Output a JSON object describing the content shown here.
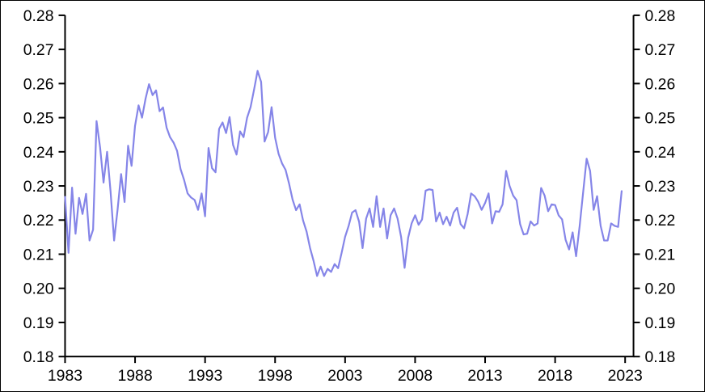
{
  "chart_data": {
    "type": "line",
    "title": "",
    "xlabel": "",
    "ylabel": "",
    "xlim": [
      1983,
      2023.6
    ],
    "ylim": [
      0.18,
      0.28
    ],
    "grid": false,
    "legend": "none",
    "x_tick_labels": [
      "1983",
      "1988",
      "1993",
      "1998",
      "2003",
      "2008",
      "2013",
      "2018",
      "2023"
    ],
    "x_ticks": [
      1983,
      1988,
      1993,
      1998,
      2003,
      2008,
      2013,
      2018,
      2023
    ],
    "y_ticks": [
      0.18,
      0.19,
      0.2,
      0.21,
      0.22,
      0.23,
      0.24,
      0.25,
      0.26,
      0.27,
      0.28
    ],
    "y_tick_labels": [
      "0.18",
      "0.19",
      "0.20",
      "0.21",
      "0.22",
      "0.23",
      "0.24",
      "0.25",
      "0.26",
      "0.27",
      "0.28"
    ],
    "y_axis_sides": [
      "left",
      "right"
    ],
    "line_color": "#8585e8",
    "axis_color": "#000000",
    "series": [
      {
        "name": "series-1",
        "x_start": 1983.0,
        "x_step": 0.25,
        "values": [
          0.2268,
          0.2104,
          0.2295,
          0.216,
          0.2265,
          0.2218,
          0.2277,
          0.214,
          0.2172,
          0.249,
          0.2413,
          0.231,
          0.24,
          0.2284,
          0.214,
          0.223,
          0.2335,
          0.2253,
          0.2418,
          0.2359,
          0.2476,
          0.2536,
          0.25,
          0.2556,
          0.2598,
          0.2566,
          0.258,
          0.2519,
          0.253,
          0.2471,
          0.2443,
          0.2427,
          0.2403,
          0.2349,
          0.2318,
          0.2278,
          0.2266,
          0.2259,
          0.223,
          0.2278,
          0.2211,
          0.2411,
          0.2352,
          0.234,
          0.2467,
          0.2486,
          0.2455,
          0.2502,
          0.242,
          0.2392,
          0.246,
          0.2443,
          0.25,
          0.2531,
          0.2583,
          0.2637,
          0.2605,
          0.243,
          0.2458,
          0.2531,
          0.2441,
          0.2394,
          0.2366,
          0.2347,
          0.2307,
          0.226,
          0.2229,
          0.2246,
          0.2199,
          0.2166,
          0.2118,
          0.208,
          0.2036,
          0.2064,
          0.2036,
          0.2057,
          0.2048,
          0.2071,
          0.2059,
          0.2104,
          0.2151,
          0.2182,
          0.2222,
          0.2229,
          0.2195,
          0.2118,
          0.2204,
          0.2234,
          0.218,
          0.227,
          0.218,
          0.2234,
          0.2146,
          0.2214,
          0.2234,
          0.2204,
          0.215,
          0.206,
          0.2148,
          0.219,
          0.2214,
          0.2186,
          0.2202,
          0.2286,
          0.229,
          0.2288,
          0.2196,
          0.2222,
          0.2188,
          0.221,
          0.2184,
          0.2222,
          0.2236,
          0.2188,
          0.2176,
          0.2218,
          0.2278,
          0.227,
          0.2254,
          0.223,
          0.225,
          0.2278,
          0.219,
          0.2226,
          0.2224,
          0.2246,
          0.2344,
          0.23,
          0.2272,
          0.2258,
          0.2188,
          0.2158,
          0.216,
          0.2196,
          0.2184,
          0.219,
          0.2294,
          0.2272,
          0.2226,
          0.2246,
          0.2244,
          0.2214,
          0.2202,
          0.2142,
          0.2114,
          0.2164,
          0.2094,
          0.2182,
          0.228,
          0.238,
          0.2344,
          0.223,
          0.227,
          0.2183,
          0.214,
          0.214,
          0.219,
          0.2183,
          0.218,
          0.2285
        ]
      }
    ]
  }
}
